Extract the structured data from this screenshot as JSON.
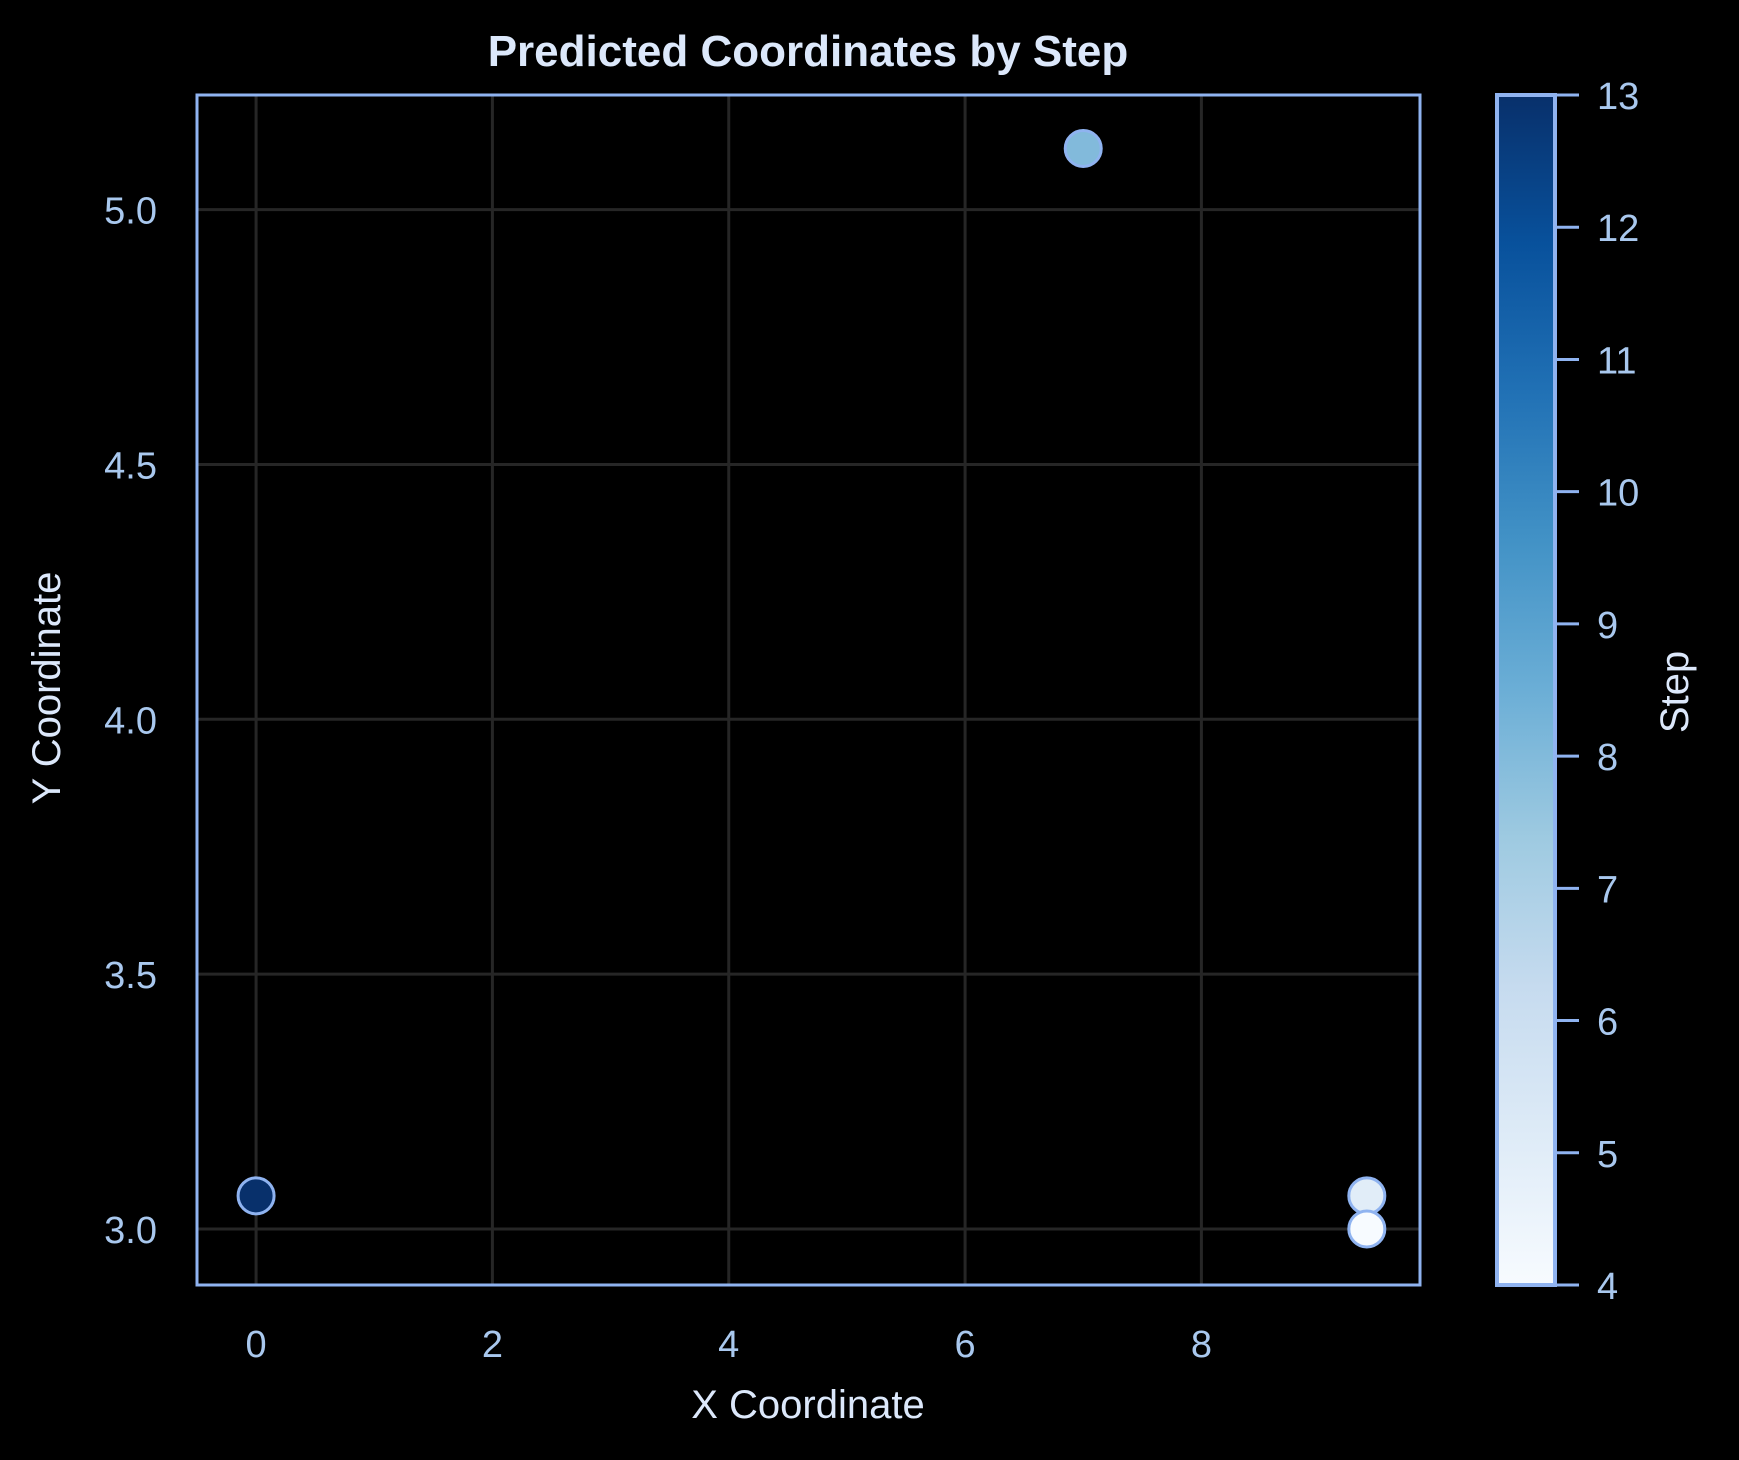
{
  "chart_data": {
    "type": "scatter",
    "title": "Predicted Coordinates by Step",
    "xlabel": "X Coordinate",
    "ylabel": "Y Coordinate",
    "xlim": [
      -0.5,
      9.85
    ],
    "ylim": [
      2.89,
      5.225
    ],
    "xticks": [
      0,
      2,
      4,
      6,
      8
    ],
    "yticks": [
      3.0,
      3.5,
      4.0,
      4.5,
      5.0
    ],
    "xtick_labels": [
      "0",
      "2",
      "4",
      "6",
      "8"
    ],
    "ytick_labels": [
      "3.0",
      "3.5",
      "4.0",
      "4.5",
      "5.0"
    ],
    "grid": true,
    "points": [
      {
        "x": 0.0,
        "y": 3.065,
        "step": 13
      },
      {
        "x": 7.0,
        "y": 5.12,
        "step": 8
      },
      {
        "x": 9.4,
        "y": 3.065,
        "step": 5
      },
      {
        "x": 9.4,
        "y": 3.0,
        "step": 4
      }
    ],
    "colorbar": {
      "label": "Step",
      "min": 4,
      "max": 13,
      "ticks": [
        4,
        5,
        6,
        7,
        8,
        9,
        10,
        11,
        12,
        13
      ],
      "tick_labels": [
        "4",
        "5",
        "6",
        "7",
        "8",
        "9",
        "10",
        "11",
        "12",
        "13"
      ],
      "colormap": "Blues"
    },
    "colors": {
      "background": "#000000",
      "frame": "#8fb3f0",
      "grid": "#262626",
      "tick_label": "#a9c8ee",
      "title": "#dce8fb",
      "label": "#dce8fb",
      "marker_edge": "#8fb3f0"
    }
  }
}
